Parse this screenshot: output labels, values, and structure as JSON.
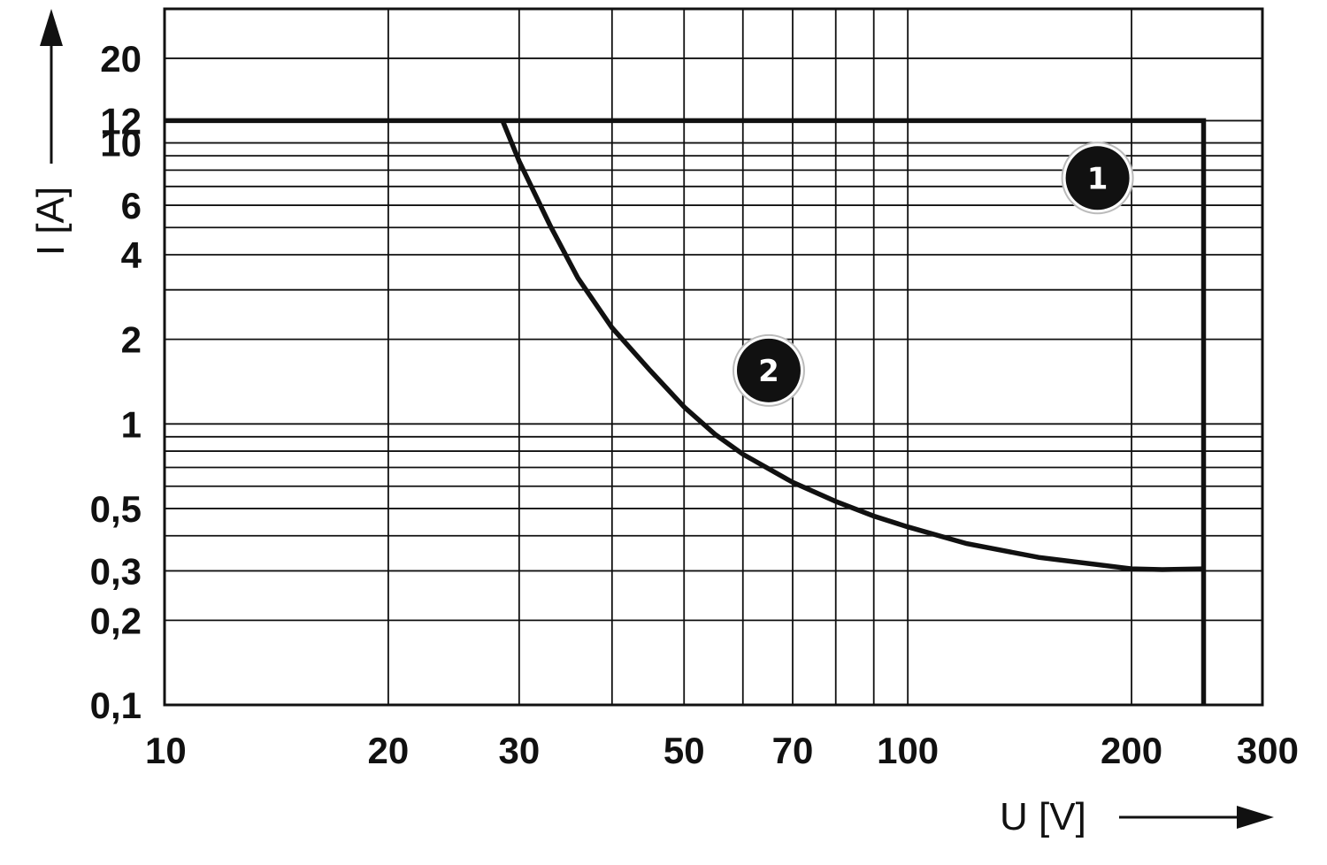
{
  "chart_data": {
    "type": "line",
    "title": "",
    "xlabel": "U [V]",
    "ylabel": "I [A]",
    "x_scale": "log",
    "y_scale": "log",
    "xlim": [
      10,
      300
    ],
    "ylim": [
      0.1,
      30
    ],
    "grid": true,
    "x_tick_labels": [
      {
        "value": 10,
        "label": "10"
      },
      {
        "value": 20,
        "label": "20"
      },
      {
        "value": 30,
        "label": "30"
      },
      {
        "value": 50,
        "label": "50"
      },
      {
        "value": 70,
        "label": "70"
      },
      {
        "value": 100,
        "label": "100"
      },
      {
        "value": 200,
        "label": "200"
      },
      {
        "value": 300,
        "label": "300"
      }
    ],
    "y_tick_labels": [
      {
        "value": 0.1,
        "label": "0,1"
      },
      {
        "value": 0.2,
        "label": "0,2"
      },
      {
        "value": 0.3,
        "label": "0,3"
      },
      {
        "value": 0.5,
        "label": "0,5"
      },
      {
        "value": 1,
        "label": "1"
      },
      {
        "value": 2,
        "label": "2"
      },
      {
        "value": 4,
        "label": "4"
      },
      {
        "value": 6,
        "label": "6"
      },
      {
        "value": 10,
        "label": "10"
      },
      {
        "value": 12,
        "label": "12"
      },
      {
        "value": 20,
        "label": "20"
      }
    ],
    "x_gridlines": [
      20,
      30,
      40,
      50,
      60,
      70,
      80,
      90,
      100,
      200
    ],
    "y_gridlines": [
      0.2,
      0.3,
      0.4,
      0.5,
      0.6,
      0.7,
      0.8,
      0.9,
      1,
      2,
      3,
      4,
      5,
      6,
      7,
      8,
      9,
      10,
      12,
      20
    ],
    "series": [
      {
        "marker_label": "1",
        "marker_at": {
          "x": 180,
          "y": 7.5
        },
        "points": [
          [
            10,
            12
          ],
          [
            250,
            12
          ],
          [
            250,
            0.1
          ]
        ]
      },
      {
        "marker_label": "2",
        "marker_at": {
          "x": 65,
          "y": 1.55
        },
        "points": [
          [
            28.5,
            12
          ],
          [
            30,
            8.6
          ],
          [
            33,
            5.1
          ],
          [
            36,
            3.3
          ],
          [
            40,
            2.2
          ],
          [
            45,
            1.55
          ],
          [
            50,
            1.15
          ],
          [
            55,
            0.92
          ],
          [
            60,
            0.78
          ],
          [
            70,
            0.62
          ],
          [
            80,
            0.53
          ],
          [
            90,
            0.47
          ],
          [
            100,
            0.43
          ],
          [
            120,
            0.375
          ],
          [
            150,
            0.335
          ],
          [
            200,
            0.305
          ],
          [
            220,
            0.303
          ],
          [
            250,
            0.305
          ]
        ]
      }
    ]
  }
}
